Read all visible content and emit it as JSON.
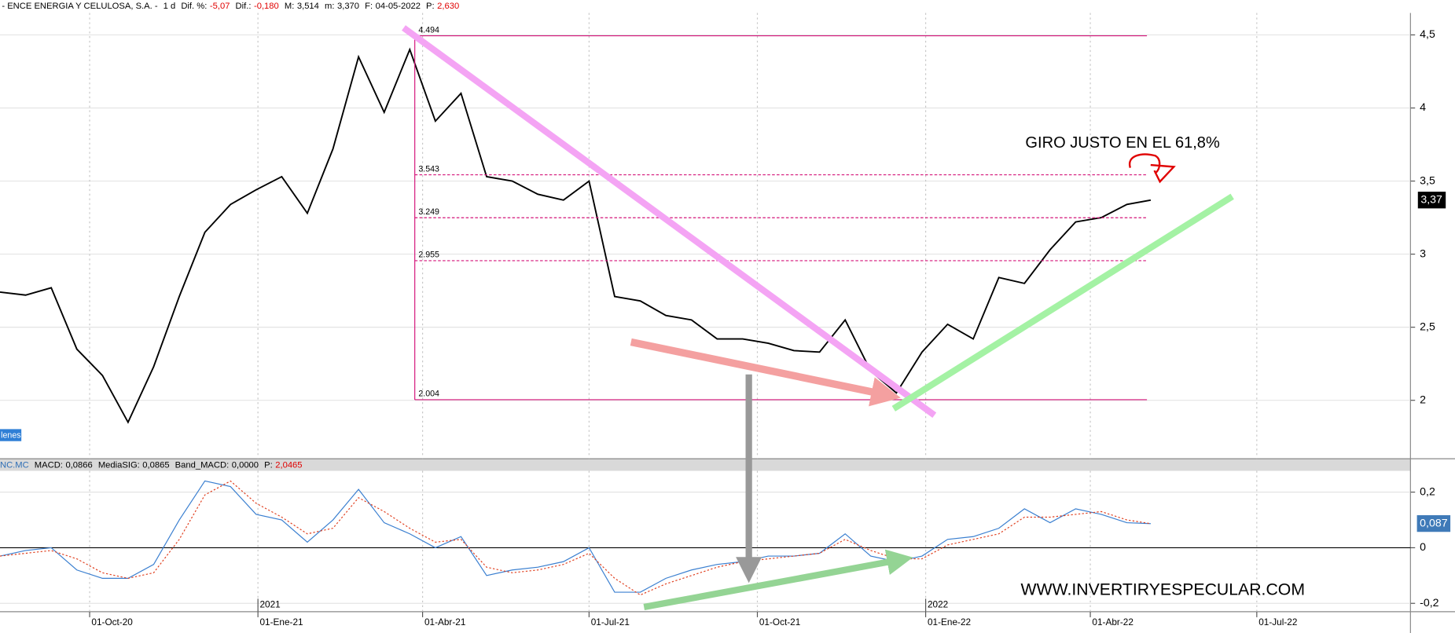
{
  "header": {
    "symbol": "- ENCE ENERGIA Y CELULOSA, S.A. -",
    "interval": "1 d",
    "fields": [
      {
        "label": "Dif. %:",
        "value": "-5,07",
        "color": "#e00000"
      },
      {
        "label": "Dif.:",
        "value": "-0,180",
        "color": "#e00000"
      },
      {
        "label": "M:",
        "value": "3,514",
        "color": "#000000"
      },
      {
        "label": "m:",
        "value": "3,370",
        "color": "#000000"
      },
      {
        "label": "F:",
        "value": "04-05-2022",
        "color": "#000000"
      },
      {
        "label": "P:",
        "value": "2,630",
        "color": "#e00000"
      }
    ]
  },
  "chart_data": [
    {
      "type": "line",
      "color": "#000000",
      "x": [
        "2020-08-13",
        "2020-08-27",
        "2020-09-10",
        "2020-09-24",
        "2020-10-08",
        "2020-10-22",
        "2020-11-05",
        "2020-11-19",
        "2020-12-03",
        "2020-12-17",
        "2020-12-31",
        "2021-01-14",
        "2021-01-28",
        "2021-02-11",
        "2021-02-25",
        "2021-03-11",
        "2021-03-25",
        "2021-04-08",
        "2021-04-22",
        "2021-05-06",
        "2021-05-20",
        "2021-06-03",
        "2021-06-17",
        "2021-07-01",
        "2021-07-15",
        "2021-07-29",
        "2021-08-12",
        "2021-08-26",
        "2021-09-09",
        "2021-09-23",
        "2021-10-07",
        "2021-10-21",
        "2021-11-04",
        "2021-11-18",
        "2021-12-02",
        "2021-12-16",
        "2021-12-30",
        "2022-01-13",
        "2022-01-27",
        "2022-02-10",
        "2022-02-24",
        "2022-03-10",
        "2022-03-24",
        "2022-04-07",
        "2022-04-21",
        "2022-05-04"
      ],
      "values": [
        2.74,
        2.72,
        2.77,
        2.35,
        2.17,
        1.85,
        2.23,
        2.71,
        3.15,
        3.34,
        3.44,
        3.53,
        3.28,
        3.72,
        4.35,
        3.97,
        4.4,
        3.91,
        4.1,
        3.53,
        3.5,
        3.41,
        3.37,
        3.5,
        2.71,
        2.68,
        2.58,
        2.55,
        2.42,
        2.42,
        2.39,
        2.34,
        2.33,
        2.55,
        2.2,
        2.05,
        2.33,
        2.52,
        2.42,
        2.84,
        2.8,
        3.03,
        3.22,
        3.25,
        3.34,
        3.37
      ],
      "xlim": [
        "2020-08-13",
        "2022-09-23"
      ],
      "ylim": [
        1.6,
        4.65
      ],
      "yticks": [
        2,
        {
          "value": 2.5,
          "label": "2,5"
        },
        3,
        {
          "value": 3.5,
          "label": "3,5"
        },
        4,
        {
          "value": 4.5,
          "label": "4,5"
        }
      ],
      "grid": true,
      "fib_levels": [
        4.494,
        3.543,
        3.249,
        2.955,
        2.004
      ],
      "fib_color": "#d4157a",
      "price_tag": {
        "value": 3.37,
        "label": "3,37"
      },
      "annotation": "GIRO JUSTO EN EL 61,8%",
      "side_tag": "lenes"
    },
    {
      "type": "line",
      "header": {
        "symbol": "NC.MC",
        "fields": [
          {
            "label": "MACD:",
            "value": "0,0866",
            "color": "#000000"
          },
          {
            "label": "MediaSIG:",
            "value": "0,0865",
            "color": "#000000"
          },
          {
            "label": "Band_MACD:",
            "value": "0,0000",
            "color": "#000000"
          },
          {
            "label": "P:",
            "value": "2,0465",
            "color": "#e00000"
          }
        ]
      },
      "x": [
        "2020-08-13",
        "2020-08-27",
        "2020-09-10",
        "2020-09-24",
        "2020-10-08",
        "2020-10-22",
        "2020-11-05",
        "2020-11-19",
        "2020-12-03",
        "2020-12-17",
        "2020-12-31",
        "2021-01-14",
        "2021-01-28",
        "2021-02-11",
        "2021-02-25",
        "2021-03-11",
        "2021-03-25",
        "2021-04-08",
        "2021-04-22",
        "2021-05-06",
        "2021-05-20",
        "2021-06-03",
        "2021-06-17",
        "2021-07-01",
        "2021-07-15",
        "2021-07-29",
        "2021-08-12",
        "2021-08-26",
        "2021-09-09",
        "2021-09-23",
        "2021-10-07",
        "2021-10-21",
        "2021-11-04",
        "2021-11-18",
        "2021-12-02",
        "2021-12-16",
        "2021-12-30",
        "2022-01-13",
        "2022-01-27",
        "2022-02-10",
        "2022-02-24",
        "2022-03-10",
        "2022-03-24",
        "2022-04-07",
        "2022-04-21",
        "2022-05-04"
      ],
      "series": [
        {
          "color": "#3a7fd0",
          "dashed": false,
          "values": [
            -0.03,
            -0.01,
            0.0,
            -0.08,
            -0.11,
            -0.11,
            -0.06,
            0.1,
            0.24,
            0.22,
            0.12,
            0.1,
            0.02,
            0.1,
            0.21,
            0.09,
            0.05,
            0.0,
            0.04,
            -0.1,
            -0.08,
            -0.07,
            -0.05,
            0.0,
            -0.16,
            -0.16,
            -0.11,
            -0.08,
            -0.06,
            -0.05,
            -0.03,
            -0.03,
            -0.02,
            0.05,
            -0.03,
            -0.05,
            -0.03,
            0.03,
            0.04,
            0.07,
            0.14,
            0.09,
            0.14,
            0.12,
            0.09,
            0.0866
          ]
        },
        {
          "color": "#e04020",
          "dashed": true,
          "values": [
            -0.03,
            -0.02,
            -0.01,
            -0.04,
            -0.09,
            -0.11,
            -0.09,
            0.03,
            0.19,
            0.24,
            0.16,
            0.11,
            0.05,
            0.07,
            0.18,
            0.13,
            0.07,
            0.02,
            0.03,
            -0.07,
            -0.09,
            -0.08,
            -0.06,
            -0.02,
            -0.11,
            -0.17,
            -0.13,
            -0.1,
            -0.07,
            -0.05,
            -0.04,
            -0.03,
            -0.02,
            0.03,
            -0.01,
            -0.04,
            -0.04,
            0.01,
            0.03,
            0.05,
            0.11,
            0.11,
            0.12,
            0.13,
            0.1,
            0.0865
          ]
        }
      ],
      "xlim": [
        "2020-08-13",
        "2022-09-23"
      ],
      "ylim": [
        -0.23,
        0.27
      ],
      "yticks": [
        {
          "value": -0.2,
          "label": "-0,2"
        },
        0,
        {
          "value": 0.2,
          "label": "0,2"
        }
      ],
      "xticks": [
        {
          "value": "2020-10-01",
          "label": "01-Oct-20"
        },
        {
          "value": "2021-01-01",
          "label": "01-Ene-21"
        },
        {
          "value": "2021-04-01",
          "label": "01-Abr-21"
        },
        {
          "value": "2021-07-01",
          "label": "01-Jul-21"
        },
        {
          "value": "2021-10-01",
          "label": "01-Oct-21"
        },
        {
          "value": "2022-01-01",
          "label": "01-Ene-22"
        },
        {
          "value": "2022-04-01",
          "label": "01-Abr-22"
        },
        {
          "value": "2022-07-01",
          "label": "01-Jul-22"
        }
      ],
      "year_ticks": [
        {
          "value": "2021-01-01",
          "label": "2021"
        },
        {
          "value": "2022-01-01",
          "label": "2022"
        }
      ],
      "value_tag": {
        "value": 0.087,
        "label": "0,087"
      },
      "annotation": "WWW.INVERTIRYESPECULAR.COM"
    }
  ]
}
